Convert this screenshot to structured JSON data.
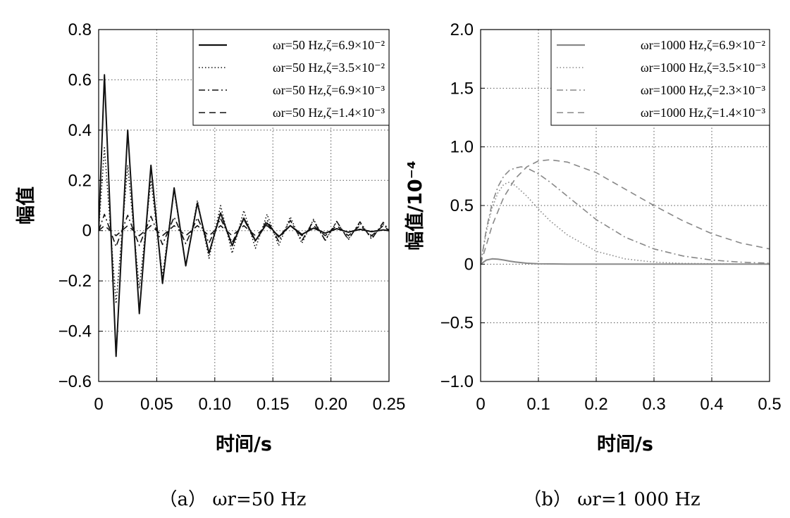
{
  "chart_data": [
    {
      "type": "line",
      "title": "",
      "caption": "（a） ωr=50 Hz",
      "xlabel": "时间/s",
      "ylabel": "幅值",
      "xlim": [
        0,
        0.25
      ],
      "ylim": [
        -0.6,
        0.8
      ],
      "xticks": [
        "0",
        "0.05",
        "0.10",
        "0.15",
        "0.20",
        "0.25"
      ],
      "xtick_values": [
        0,
        0.05,
        0.1,
        0.15,
        0.2,
        0.25
      ],
      "yticks": [
        "0.8",
        "0.6",
        "0.4",
        "0.2",
        "0",
        "−0.2",
        "−0.4",
        "−0.6"
      ],
      "ytick_values": [
        0.8,
        0.6,
        0.4,
        0.2,
        0,
        -0.2,
        -0.4,
        -0.6
      ],
      "grid": true,
      "legend_position": "top-right",
      "series": [
        {
          "name": "ωr=50 Hz,ζ=6.9×10⁻²",
          "style": "solid",
          "color": "#111111",
          "x": [
            0,
            0.005,
            0.015,
            0.025,
            0.035,
            0.045,
            0.055,
            0.065,
            0.075,
            0.085,
            0.095,
            0.105,
            0.115,
            0.125,
            0.135,
            0.145,
            0.155,
            0.165,
            0.175,
            0.185,
            0.195,
            0.205,
            0.215,
            0.225,
            0.235,
            0.245,
            0.25
          ],
          "y": [
            0,
            0.62,
            -0.5,
            0.4,
            -0.33,
            0.26,
            -0.21,
            0.17,
            -0.14,
            0.11,
            -0.09,
            0.07,
            -0.06,
            0.05,
            -0.04,
            0.03,
            -0.025,
            0.02,
            -0.015,
            0.01,
            -0.01,
            0.008,
            -0.006,
            0.005,
            -0.004,
            0.003,
            0
          ]
        },
        {
          "name": "ωr=50 Hz,ζ=3.5×10⁻²",
          "style": "dotted",
          "color": "#111111",
          "x": [
            0,
            0.005,
            0.015,
            0.025,
            0.035,
            0.045,
            0.055,
            0.065,
            0.075,
            0.085,
            0.095,
            0.105,
            0.115,
            0.125,
            0.135,
            0.145,
            0.155,
            0.165,
            0.175,
            0.185,
            0.195,
            0.205,
            0.215,
            0.225,
            0.235,
            0.245,
            0.25
          ],
          "y": [
            0,
            0.33,
            -0.29,
            0.26,
            -0.23,
            0.2,
            -0.18,
            0.16,
            -0.14,
            0.12,
            -0.11,
            0.1,
            -0.09,
            0.08,
            -0.07,
            0.065,
            -0.06,
            0.055,
            -0.05,
            0.045,
            -0.04,
            0.036,
            -0.033,
            0.03,
            -0.027,
            0.024,
            0
          ]
        },
        {
          "name": "ωr=50 Hz,ζ=6.9×10⁻³",
          "style": "dashdot",
          "color": "#111111",
          "x": [
            0,
            0.005,
            0.015,
            0.025,
            0.035,
            0.045,
            0.055,
            0.065,
            0.075,
            0.085,
            0.095,
            0.105,
            0.115,
            0.125,
            0.135,
            0.145,
            0.155,
            0.165,
            0.175,
            0.185,
            0.195,
            0.205,
            0.215,
            0.225,
            0.235,
            0.245,
            0.25
          ],
          "y": [
            0,
            0.065,
            -0.063,
            0.061,
            -0.059,
            0.057,
            -0.055,
            0.054,
            -0.052,
            0.051,
            -0.049,
            0.048,
            -0.047,
            0.045,
            -0.044,
            0.043,
            -0.042,
            0.041,
            -0.04,
            0.039,
            -0.038,
            0.037,
            -0.036,
            0.035,
            -0.034,
            0.033,
            0
          ]
        },
        {
          "name": "ωr=50 Hz,ζ=1.4×10⁻³",
          "style": "dashed",
          "color": "#111111",
          "x": [
            0,
            0.005,
            0.015,
            0.025,
            0.035,
            0.045,
            0.055,
            0.065,
            0.075,
            0.085,
            0.095,
            0.105,
            0.115,
            0.125,
            0.135,
            0.145,
            0.155,
            0.165,
            0.175,
            0.185,
            0.195,
            0.205,
            0.215,
            0.225,
            0.235,
            0.245,
            0.25
          ],
          "y": [
            0,
            0.02,
            -0.02,
            0.02,
            -0.02,
            0.02,
            -0.02,
            0.02,
            -0.02,
            0.02,
            -0.02,
            0.02,
            -0.02,
            0.02,
            -0.02,
            0.02,
            -0.02,
            0.02,
            -0.02,
            0.02,
            -0.02,
            0.02,
            -0.02,
            0.02,
            -0.02,
            0.02,
            0
          ]
        }
      ]
    },
    {
      "type": "line",
      "title": "",
      "caption": "（b） ωr=1 000 Hz",
      "xlabel": "时间/s",
      "ylabel": "幅值/10⁻⁴",
      "xlim": [
        0,
        0.5
      ],
      "ylim": [
        -1.0,
        2.0
      ],
      "xticks": [
        "0",
        "0.1",
        "0.2",
        "0.3",
        "0.4",
        "0.5"
      ],
      "xtick_values": [
        0,
        0.1,
        0.2,
        0.3,
        0.4,
        0.5
      ],
      "yticks": [
        "2.0",
        "1.5",
        "1.0",
        "0.5",
        "0",
        "−0.5",
        "−1.0"
      ],
      "ytick_values": [
        2.0,
        1.5,
        1.0,
        0.5,
        0,
        -0.5,
        -1.0
      ],
      "grid": true,
      "legend_position": "top-right",
      "series": [
        {
          "name": "ωr=1000 Hz,ζ=6.9×10⁻²",
          "style": "solid",
          "color": "#888888",
          "x": [
            0,
            0.01,
            0.02,
            0.03,
            0.04,
            0.05,
            0.06,
            0.08,
            0.1,
            0.15,
            0.2,
            0.3,
            0.4,
            0.5
          ],
          "y": [
            0,
            0.035,
            0.045,
            0.042,
            0.035,
            0.026,
            0.018,
            0.008,
            0.003,
            0.0,
            0.0,
            0.0,
            0.0,
            0.0
          ]
        },
        {
          "name": "ωr=1000 Hz,ζ=3.5×10⁻³",
          "style": "dotted",
          "color": "#888888",
          "x": [
            0,
            0.01,
            0.02,
            0.03,
            0.04,
            0.05,
            0.06,
            0.08,
            0.1,
            0.12,
            0.15,
            0.2,
            0.25,
            0.3,
            0.35,
            0.4,
            0.45,
            0.5
          ],
          "y": [
            0,
            0.28,
            0.48,
            0.61,
            0.68,
            0.7,
            0.67,
            0.58,
            0.47,
            0.37,
            0.25,
            0.11,
            0.045,
            0.017,
            0.007,
            0.003,
            0.001,
            0.0
          ]
        },
        {
          "name": "ωr=1000 Hz,ζ=2.3×10⁻³",
          "style": "dashdot",
          "color": "#888888",
          "x": [
            0,
            0.01,
            0.02,
            0.03,
            0.04,
            0.05,
            0.06,
            0.07,
            0.08,
            0.1,
            0.12,
            0.15,
            0.2,
            0.25,
            0.3,
            0.35,
            0.4,
            0.45,
            0.5
          ],
          "y": [
            0,
            0.3,
            0.52,
            0.66,
            0.75,
            0.8,
            0.82,
            0.83,
            0.82,
            0.77,
            0.7,
            0.58,
            0.38,
            0.23,
            0.13,
            0.07,
            0.035,
            0.017,
            0.008
          ]
        },
        {
          "name": "ωr=1000 Hz,ζ=1.4×10⁻³",
          "style": "dashed",
          "color": "#888888",
          "x": [
            0,
            0.02,
            0.04,
            0.06,
            0.08,
            0.1,
            0.12,
            0.15,
            0.2,
            0.25,
            0.3,
            0.35,
            0.4,
            0.45,
            0.5
          ],
          "y": [
            0,
            0.33,
            0.57,
            0.73,
            0.83,
            0.88,
            0.89,
            0.87,
            0.78,
            0.64,
            0.5,
            0.37,
            0.26,
            0.18,
            0.13
          ]
        }
      ]
    }
  ]
}
